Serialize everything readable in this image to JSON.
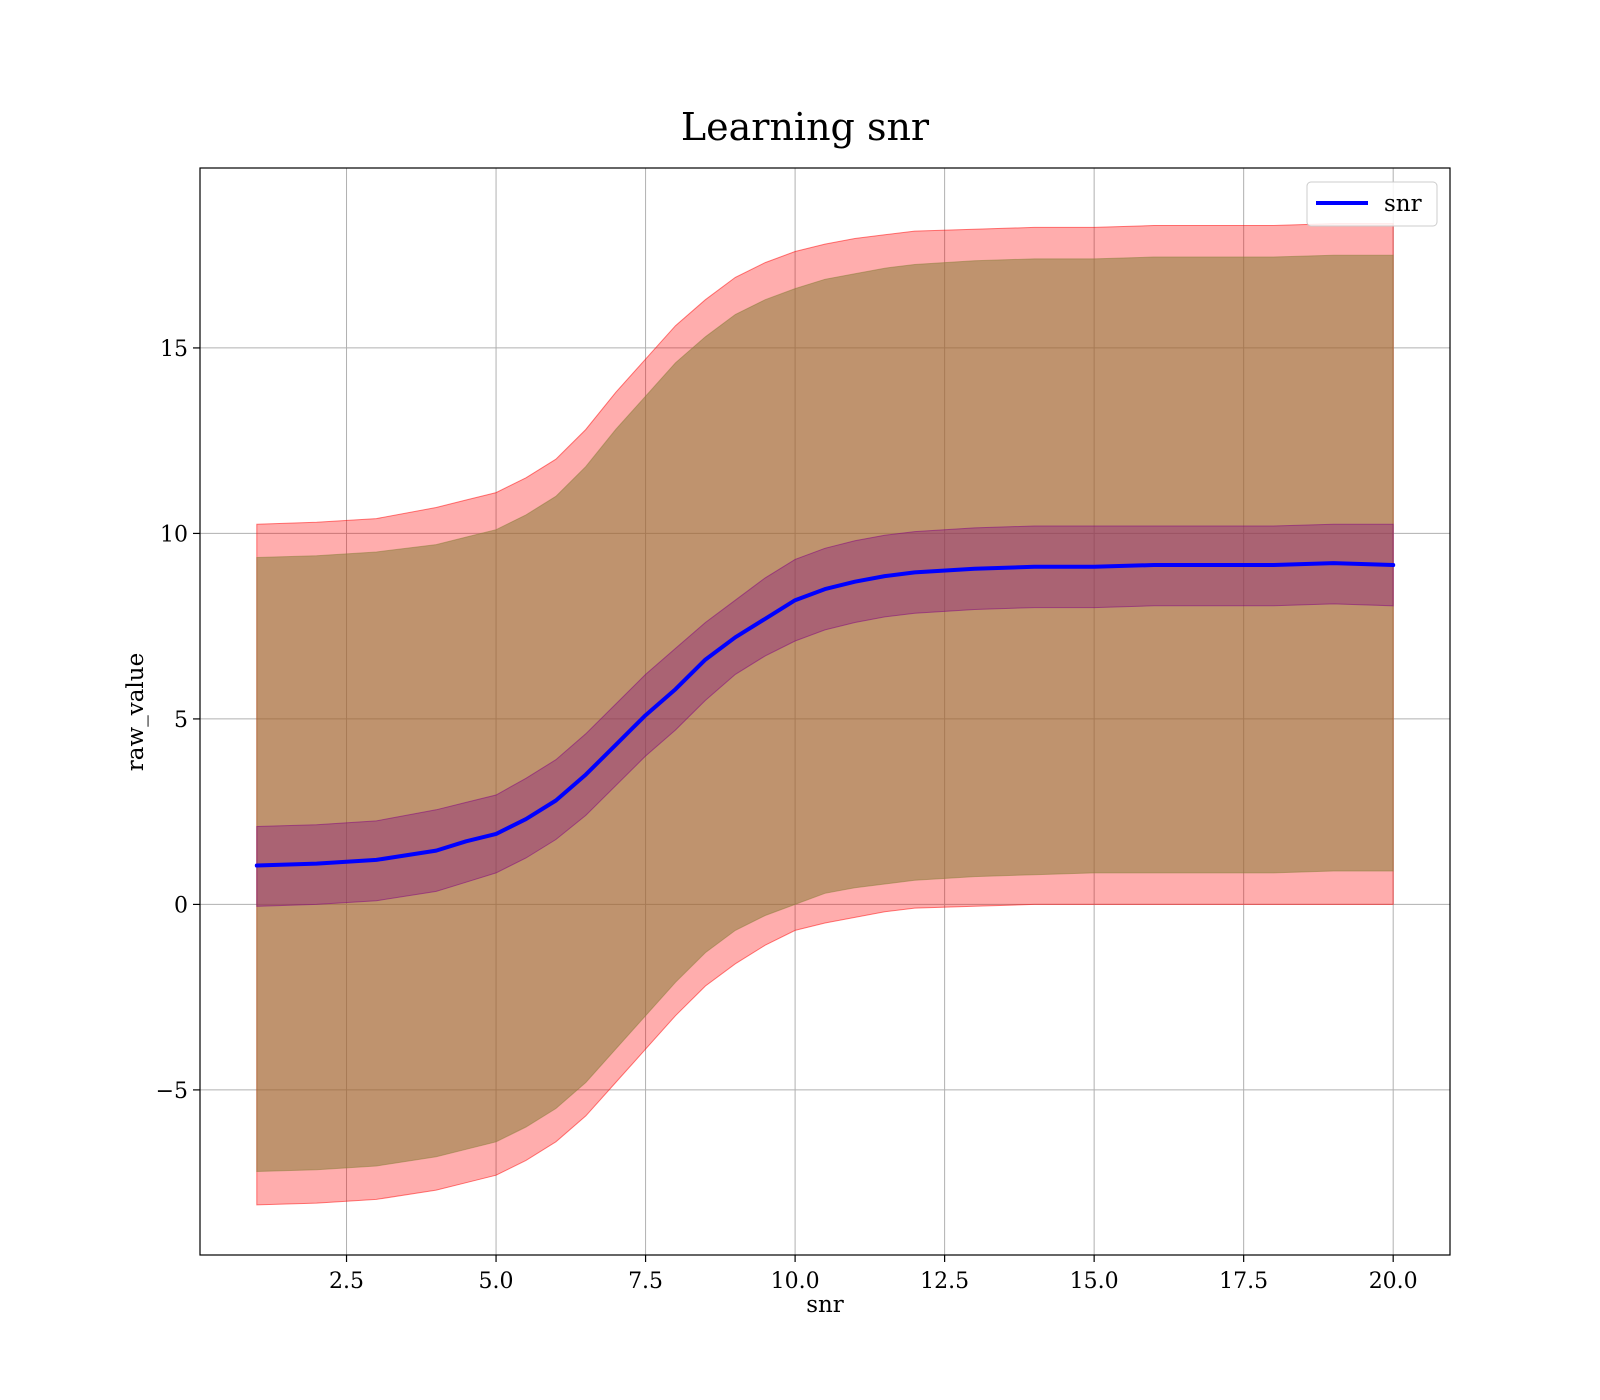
{
  "chart_data": {
    "type": "line",
    "title": "Learning snr",
    "xlabel": "snr",
    "ylabel": "raw_value",
    "xlim": [
      0.05,
      20.95
    ],
    "ylim": [
      -9.45,
      19.85
    ],
    "grid": true,
    "legend_position": "top-right",
    "x_ticks": [
      2.5,
      5.0,
      7.5,
      10.0,
      12.5,
      15.0,
      17.5,
      20.0
    ],
    "x_tick_labels": [
      "2.5",
      "5.0",
      "7.5",
      "10.0",
      "12.5",
      "15.0",
      "17.5",
      "20.0"
    ],
    "y_ticks": [
      -5,
      0,
      5,
      10,
      15
    ],
    "y_tick_labels": [
      "−5",
      "0",
      "5",
      "10",
      "15"
    ],
    "colors": {
      "line": "#0000ff",
      "outer_band": "#ff0000",
      "middle_band": "#8b7d3a",
      "inner_band": "#800080",
      "grid": "#b0b0b0"
    },
    "x": [
      1.0,
      2.0,
      3.0,
      4.0,
      4.5,
      5.0,
      5.5,
      6.0,
      6.5,
      7.0,
      7.5,
      8.0,
      8.5,
      9.0,
      9.5,
      10.0,
      10.5,
      11.0,
      11.5,
      12.0,
      13.0,
      14.0,
      15.0,
      16.0,
      17.0,
      18.0,
      19.0,
      20.0
    ],
    "series": [
      {
        "name": "snr",
        "values": [
          1.05,
          1.1,
          1.2,
          1.45,
          1.7,
          1.9,
          2.3,
          2.8,
          3.5,
          4.3,
          5.1,
          5.8,
          6.6,
          7.2,
          7.7,
          8.2,
          8.5,
          8.7,
          8.85,
          8.95,
          9.05,
          9.1,
          9.1,
          9.15,
          9.15,
          9.15,
          9.2,
          9.15
        ]
      }
    ],
    "bands": [
      {
        "role": "outer",
        "upper": [
          10.25,
          10.3,
          10.4,
          10.7,
          10.9,
          11.1,
          11.5,
          12.0,
          12.8,
          13.8,
          14.7,
          15.6,
          16.3,
          16.9,
          17.3,
          17.6,
          17.8,
          17.95,
          18.05,
          18.15,
          18.2,
          18.25,
          18.25,
          18.3,
          18.3,
          18.3,
          18.35,
          18.35
        ],
        "lower": [
          -8.1,
          -8.05,
          -7.95,
          -7.7,
          -7.5,
          -7.3,
          -6.9,
          -6.4,
          -5.7,
          -4.8,
          -3.9,
          -3.0,
          -2.2,
          -1.6,
          -1.1,
          -0.7,
          -0.5,
          -0.35,
          -0.2,
          -0.1,
          -0.05,
          0.0,
          0.0,
          0.0,
          0.0,
          0.0,
          0.0,
          0.0
        ]
      },
      {
        "role": "middle",
        "upper": [
          9.35,
          9.4,
          9.5,
          9.7,
          9.9,
          10.1,
          10.5,
          11.0,
          11.8,
          12.8,
          13.7,
          14.6,
          15.3,
          15.9,
          16.3,
          16.6,
          16.85,
          17.0,
          17.15,
          17.25,
          17.35,
          17.4,
          17.4,
          17.45,
          17.45,
          17.45,
          17.5,
          17.5
        ],
        "lower": [
          -7.2,
          -7.15,
          -7.05,
          -6.8,
          -6.6,
          -6.4,
          -6.0,
          -5.5,
          -4.8,
          -3.9,
          -3.0,
          -2.1,
          -1.3,
          -0.7,
          -0.3,
          0.0,
          0.3,
          0.45,
          0.55,
          0.65,
          0.75,
          0.8,
          0.85,
          0.85,
          0.85,
          0.85,
          0.9,
          0.9
        ]
      },
      {
        "role": "inner",
        "upper": [
          2.1,
          2.15,
          2.25,
          2.55,
          2.75,
          2.95,
          3.4,
          3.9,
          4.6,
          5.4,
          6.2,
          6.9,
          7.6,
          8.2,
          8.8,
          9.3,
          9.6,
          9.8,
          9.95,
          10.05,
          10.15,
          10.2,
          10.2,
          10.2,
          10.2,
          10.2,
          10.25,
          10.25
        ],
        "lower": [
          -0.05,
          0.0,
          0.1,
          0.35,
          0.6,
          0.85,
          1.25,
          1.75,
          2.4,
          3.2,
          4.0,
          4.7,
          5.5,
          6.2,
          6.7,
          7.1,
          7.4,
          7.6,
          7.75,
          7.85,
          7.95,
          8.0,
          8.0,
          8.05,
          8.05,
          8.05,
          8.1,
          8.05
        ]
      }
    ]
  }
}
